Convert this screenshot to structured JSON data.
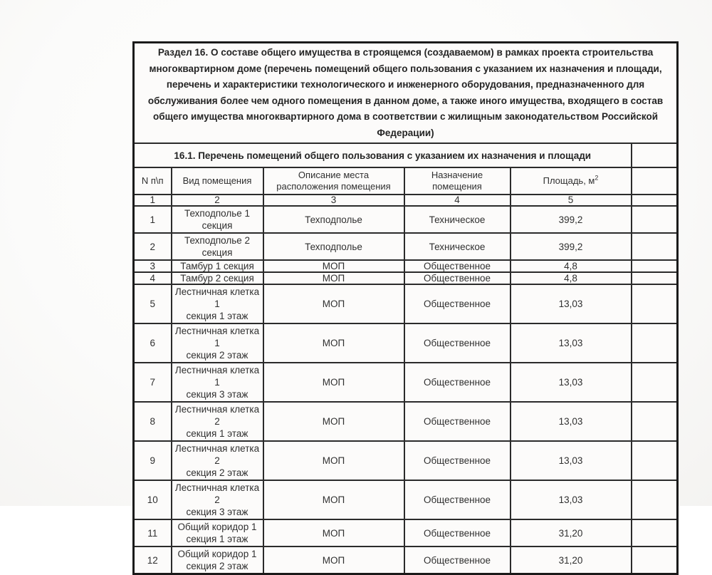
{
  "document": {
    "section_header": "Раздел 16. О составе общего имущества в строящемся (создаваемом) в рамках проекта строительства многоквартирном доме (перечень помещений общего пользования с указанием их назначения и площади, перечень и характеристики технологического и инженерного оборудования, предназначенного для обслуживания более чем одного помещения в данном доме, а также иного имущества, входящего в состав общего имущества многоквартирного дома в соответствии с жилищным законодательством Российской Федерации)",
    "subsection_title": "16.1. Перечень помещений общего пользования с указанием их назначения и площади"
  },
  "table": {
    "headers": {
      "num": "N п\\п",
      "type": "Вид помещения",
      "location": "Описание места расположения помещения",
      "purpose": "Назначение помещения",
      "area_base": "Площадь, м",
      "area_sup": "2"
    },
    "column_numbers": [
      "1",
      "2",
      "3",
      "4",
      "5"
    ],
    "rows": [
      {
        "num": "1",
        "type": "Техподполье 1\nсекция",
        "location": "Техподполье",
        "purpose": "Техническое",
        "area": "399,2"
      },
      {
        "num": "2",
        "type": "Техподполье 2\nсекция",
        "location": "Техподполье",
        "purpose": "Техническое",
        "area": "399,2"
      },
      {
        "num": "3",
        "type": "Тамбур 1 секция",
        "location": "МОП",
        "purpose": "Общественное",
        "area": "4,8"
      },
      {
        "num": "4",
        "type": "Тамбур 2 секция",
        "location": "МОП",
        "purpose": "Общественное",
        "area": "4,8"
      },
      {
        "num": "5",
        "type": "Лестничная клетка 1\nсекция 1 этаж",
        "location": "МОП",
        "purpose": "Общественное",
        "area": "13,03"
      },
      {
        "num": "6",
        "type": "Лестничная клетка 1\nсекция 2 этаж",
        "location": "МОП",
        "purpose": "Общественное",
        "area": "13,03"
      },
      {
        "num": "7",
        "type": "Лестничная клетка 1\nсекция 3 этаж",
        "location": "МОП",
        "purpose": "Общественное",
        "area": "13,03"
      },
      {
        "num": "8",
        "type": "Лестничная клетка 2\nсекция 1 этаж",
        "location": "МОП",
        "purpose": "Общественное",
        "area": "13,03"
      },
      {
        "num": "9",
        "type": "Лестничная клетка 2\nсекция 2 этаж",
        "location": "МОП",
        "purpose": "Общественное",
        "area": "13,03"
      },
      {
        "num": "10",
        "type": "Лестничная клетка 2\nсекция 3 этаж",
        "location": "МОП",
        "purpose": "Общественное",
        "area": "13,03"
      },
      {
        "num": "11",
        "type": "Общий коридор 1\nсекция 1 этаж",
        "location": "МОП",
        "purpose": "Общественное",
        "area": "31,20"
      },
      {
        "num": "12",
        "type": "Общий коридор 1\nсекция 2 этаж",
        "location": "МОП",
        "purpose": "Общественное",
        "area": "31,20"
      }
    ]
  }
}
